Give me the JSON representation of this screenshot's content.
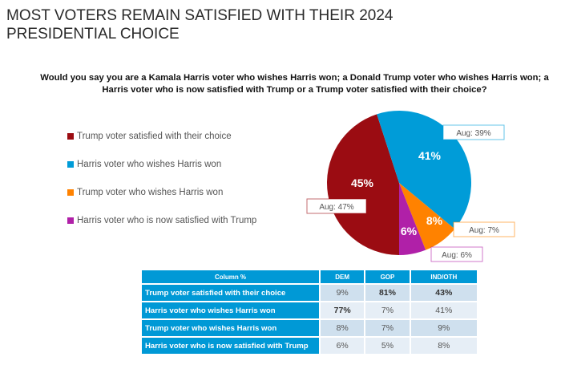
{
  "title_line1": "MOST VOTERS REMAIN SATISFIED WITH THEIR 2024",
  "title_line2": "PRESIDENTIAL CHOICE",
  "question": "Would you say you are a Kamala Harris voter who wishes Harris won; a Donald Trump voter who wishes Harris won; a Harris voter who is now satisfied with Trump or a Trump voter satisfied with their choice?",
  "chart_data": {
    "type": "pie",
    "legend_position": "left",
    "slices": [
      {
        "label": "Trump voter satisfied with their choice",
        "value": 45,
        "value_label": "45%",
        "aug_label": "Aug: 47%",
        "color": "#9b0c12"
      },
      {
        "label": "Harris voter who wishes Harris won",
        "value": 41,
        "value_label": "41%",
        "aug_label": "Aug: 39%",
        "color": "#009cd8"
      },
      {
        "label": "Trump voter who wishes Harris won",
        "value": 8,
        "value_label": "8%",
        "aug_label": "Aug: 7%",
        "color": "#ff8200"
      },
      {
        "label": "Harris voter who is now satisfied with Trump",
        "value": 6,
        "value_label": "6%",
        "aug_label": "Aug: 6%",
        "color": "#b020a8"
      }
    ]
  },
  "table": {
    "headers": [
      "Column %",
      "DEM",
      "GOP",
      "IND/OTH"
    ],
    "rows": [
      {
        "label": "Trump voter satisfied with their choice",
        "values": [
          "9%",
          "81%",
          "43%"
        ],
        "bold": [
          false,
          true,
          true
        ]
      },
      {
        "label": "Harris voter who wishes Harris won",
        "values": [
          "77%",
          "7%",
          "41%"
        ],
        "bold": [
          true,
          false,
          false
        ]
      },
      {
        "label": "Trump voter who wishes Harris won",
        "values": [
          "8%",
          "7%",
          "9%"
        ],
        "bold": [
          false,
          false,
          false
        ]
      },
      {
        "label": "Harris voter who is now satisfied with Trump",
        "values": [
          "6%",
          "5%",
          "8%"
        ],
        "bold": [
          false,
          false,
          false
        ]
      }
    ]
  }
}
